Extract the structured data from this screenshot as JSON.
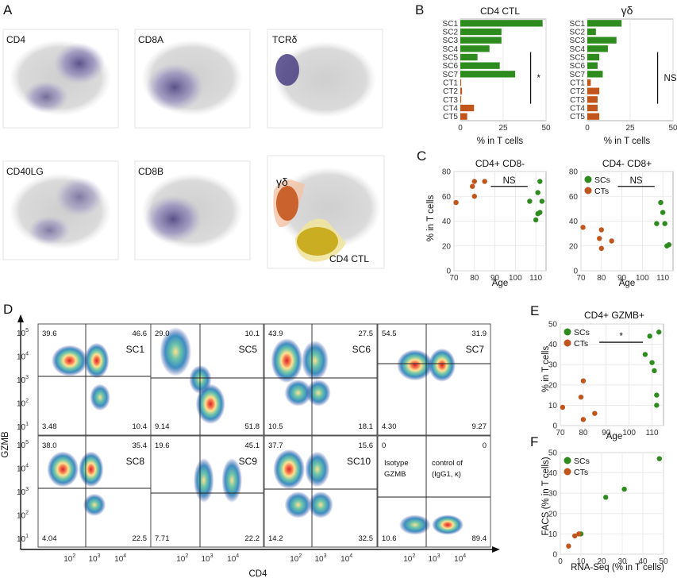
{
  "panel_letters": {
    "a": "A",
    "b": "B",
    "c": "C",
    "d": "D",
    "e": "E",
    "f": "F"
  },
  "panel_a": {
    "labels": [
      "CD4",
      "CD8A",
      "TCRδ",
      "CD40LG",
      "CD8B"
    ],
    "overlay_labels": {
      "gd": "γδ",
      "cd4ctl": "CD4 CTL"
    },
    "colors": {
      "background": "#d2d2d2",
      "expression": "#5a4f94",
      "gd": "#c4571e",
      "cd4ctl": "#c7a614"
    }
  },
  "chart_data": [
    {
      "id": "B-left",
      "type": "bar",
      "orientation": "horizontal",
      "title": "CD4 CTL",
      "xlabel": "% in T cells",
      "categories": [
        "SC1",
        "SC2",
        "SC3",
        "SC4",
        "SC5",
        "SC6",
        "SC7",
        "CT1",
        "CT2",
        "CT3",
        "CT4",
        "CT5"
      ],
      "values": [
        48,
        24,
        24,
        17,
        10,
        23,
        32,
        0.5,
        1,
        0.5,
        8,
        4
      ],
      "colors": {
        "SC": "#2e8b1e",
        "CT": "#c0561c"
      },
      "xlim": [
        0,
        50
      ],
      "xticks": [
        "0",
        "25",
        "50"
      ],
      "annotation": "*"
    },
    {
      "id": "B-right",
      "type": "bar",
      "orientation": "horizontal",
      "title": "γδ",
      "xlabel": "% in T cells",
      "categories": [
        "SC1",
        "SC2",
        "SC3",
        "SC4",
        "SC5",
        "SC6",
        "SC7",
        "CT1",
        "CT2",
        "CT3",
        "CT4",
        "CT5"
      ],
      "values": [
        20,
        5,
        17,
        12,
        7,
        6,
        9,
        2,
        7,
        6,
        6,
        7
      ],
      "colors": {
        "SC": "#2e8b1e",
        "CT": "#c0561c"
      },
      "xlim": [
        0,
        50
      ],
      "xticks": [
        "0",
        "25",
        "50"
      ],
      "annotation": "NS"
    },
    {
      "id": "C-left",
      "type": "scatter",
      "title": "CD4+ CD8-",
      "xlabel": "Age",
      "ylabel": "% in T cells",
      "xlim": [
        70,
        115
      ],
      "ylim": [
        0,
        80
      ],
      "xticks": [
        "70",
        "80",
        "90",
        "100",
        "110"
      ],
      "yticks": [
        "0",
        "20",
        "40",
        "60",
        "80"
      ],
      "annotation": "NS",
      "series": [
        {
          "name": "CTs",
          "color": "#c0561c",
          "points": [
            [
              71,
              55
            ],
            [
              79,
              68
            ],
            [
              80,
              60
            ],
            [
              80,
              72
            ],
            [
              85,
              72
            ]
          ]
        },
        {
          "name": "SCs",
          "color": "#2e8b1e",
          "points": [
            [
              107,
              56
            ],
            [
              110,
              41
            ],
            [
              111,
              46
            ],
            [
              111,
              63
            ],
            [
              112,
              72
            ],
            [
              112,
              47
            ],
            [
              113,
              56
            ]
          ]
        }
      ]
    },
    {
      "id": "C-right",
      "type": "scatter",
      "title": "CD4- CD8+",
      "xlabel": "Age",
      "legend": [
        "SCs",
        "CTs"
      ],
      "xlim": [
        70,
        115
      ],
      "ylim": [
        0,
        80
      ],
      "xticks": [
        "70",
        "80",
        "90",
        "100",
        "110"
      ],
      "yticks": [
        "0",
        "20",
        "40",
        "60",
        "80"
      ],
      "annotation": "NS",
      "series": [
        {
          "name": "SCs",
          "color": "#2e8b1e",
          "points": [
            [
              107,
              38
            ],
            [
              109,
              55
            ],
            [
              110,
              47
            ],
            [
              111,
              38
            ],
            [
              112,
              20
            ],
            [
              113,
              21
            ]
          ]
        },
        {
          "name": "CTs",
          "color": "#c0561c",
          "points": [
            [
              71,
              35
            ],
            [
              79,
              26
            ],
            [
              80,
              33
            ],
            [
              80,
              18
            ],
            [
              85,
              24
            ]
          ]
        }
      ]
    },
    {
      "id": "E",
      "type": "scatter",
      "title": "CD4+ GZMB+",
      "xlabel": "Age",
      "ylabel": "% in T cells",
      "legend": [
        "SCs",
        "CTs"
      ],
      "xlim": [
        70,
        115
      ],
      "ylim": [
        0,
        50
      ],
      "xticks": [
        "70",
        "80",
        "90",
        "100",
        "110"
      ],
      "yticks": [
        "0",
        "10",
        "20",
        "30",
        "40",
        "50"
      ],
      "annotation": "*",
      "series": [
        {
          "name": "SCs",
          "color": "#2e8b1e",
          "points": [
            [
              107,
              35
            ],
            [
              109,
              44
            ],
            [
              110,
              31
            ],
            [
              111,
              27
            ],
            [
              112,
              10
            ],
            [
              112,
              15
            ],
            [
              113,
              46
            ]
          ]
        },
        {
          "name": "CTs",
          "color": "#c0561c",
          "points": [
            [
              71,
              9
            ],
            [
              79,
              14
            ],
            [
              80,
              3
            ],
            [
              80,
              22
            ],
            [
              85,
              6
            ]
          ]
        }
      ]
    },
    {
      "id": "F",
      "type": "scatter",
      "xlabel": "RNA-Seq (% in T cells)",
      "ylabel": "FACS (% in T cells)",
      "legend": [
        "SCs",
        "CTs"
      ],
      "xlim": [
        0,
        50
      ],
      "ylim": [
        0,
        50
      ],
      "xticks": [
        "0",
        "10",
        "20",
        "30",
        "40",
        "50"
      ],
      "yticks": [
        "0",
        "10",
        "20",
        "30",
        "40",
        "50"
      ],
      "series": [
        {
          "name": "SCs",
          "color": "#2e8b1e",
          "points": [
            [
              10,
              10
            ],
            [
              22,
              28
            ],
            [
              31,
              32
            ],
            [
              48,
              47
            ]
          ]
        },
        {
          "name": "CTs",
          "color": "#c0561c",
          "points": [
            [
              4,
              4
            ],
            [
              7,
              9
            ],
            [
              9,
              10
            ]
          ]
        }
      ]
    },
    {
      "id": "D",
      "type": "heatmap",
      "subtype": "flow-cytometry-density",
      "xlabel": "CD4",
      "ylabel": "GZMB",
      "axis_ticks": [
        "10",
        "10",
        "10",
        "10",
        "10"
      ],
      "axis_tick_exponents": [
        "1",
        "2",
        "3",
        "4",
        "5"
      ],
      "plots": [
        {
          "label": "SC1",
          "quadrants": [
            "39.6",
            "46.6",
            "3.48",
            "10.4"
          ]
        },
        {
          "label": "SC5",
          "quadrants": [
            "29.0",
            "10.1",
            "9.14",
            "51.8"
          ]
        },
        {
          "label": "SC6",
          "quadrants": [
            "43.9",
            "27.5",
            "10.5",
            "18.1"
          ]
        },
        {
          "label": "SC7",
          "quadrants": [
            "54.5",
            "31.9",
            "4.30",
            "9.27"
          ]
        },
        {
          "label": "SC8",
          "quadrants": [
            "38.0",
            "35.4",
            "4.04",
            "22.5"
          ]
        },
        {
          "label": "SC9",
          "quadrants": [
            "19.6",
            "45.1",
            "7.71",
            "22.2"
          ]
        },
        {
          "label": "SC10",
          "quadrants": [
            "37.7",
            "15.6",
            "14.2",
            "32.5"
          ]
        },
        {
          "label": "",
          "isotype_text": [
            "Isotype",
            "control of",
            "GZMB",
            "(IgG1, κ)"
          ],
          "quadrants": [
            "0",
            "0",
            "10.6",
            "89.4"
          ]
        }
      ]
    }
  ]
}
